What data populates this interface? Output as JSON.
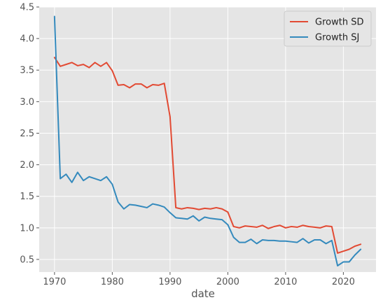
{
  "chart_data": {
    "type": "line",
    "title": "",
    "xlabel": "date",
    "ylabel": "",
    "xlim": [
      1967.35,
      2025.65
    ],
    "ylim": [
      0.3,
      4.5
    ],
    "grid": true,
    "legend_position": "top-right",
    "xticks": [
      1970,
      1980,
      1990,
      2000,
      2010,
      2020
    ],
    "yticks": [
      0.5,
      1.0,
      1.5,
      2.0,
      2.5,
      3.0,
      3.5,
      4.0,
      4.5
    ],
    "x": [
      1970,
      1971,
      1972,
      1973,
      1974,
      1975,
      1976,
      1977,
      1978,
      1979,
      1980,
      1981,
      1982,
      1983,
      1984,
      1985,
      1986,
      1987,
      1988,
      1989,
      1990,
      1991,
      1992,
      1993,
      1994,
      1995,
      1996,
      1997,
      1998,
      1999,
      2000,
      2001,
      2002,
      2003,
      2004,
      2005,
      2006,
      2007,
      2008,
      2009,
      2010,
      2011,
      2012,
      2013,
      2014,
      2015,
      2016,
      2017,
      2018,
      2019,
      2020,
      2021,
      2022,
      2023
    ],
    "series": [
      {
        "name": "Growth SD",
        "color": "#E24A33",
        "values": [
          3.7,
          3.56,
          3.59,
          3.62,
          3.57,
          3.59,
          3.54,
          3.62,
          3.56,
          3.62,
          3.49,
          3.26,
          3.27,
          3.22,
          3.28,
          3.28,
          3.22,
          3.27,
          3.26,
          3.29,
          2.76,
          1.32,
          1.3,
          1.32,
          1.31,
          1.29,
          1.31,
          1.3,
          1.32,
          1.3,
          1.25,
          1.02,
          1.0,
          1.03,
          1.02,
          1.01,
          1.04,
          0.99,
          1.02,
          1.04,
          1.0,
          1.02,
          1.01,
          1.04,
          1.02,
          1.01,
          1.0,
          1.03,
          1.02,
          0.6,
          0.63,
          0.66,
          0.71,
          0.74
        ]
      },
      {
        "name": "Growth SJ",
        "color": "#348ABD",
        "values": [
          4.35,
          1.78,
          1.85,
          1.72,
          1.88,
          1.75,
          1.81,
          1.78,
          1.75,
          1.81,
          1.69,
          1.41,
          1.3,
          1.37,
          1.36,
          1.34,
          1.32,
          1.38,
          1.36,
          1.33,
          1.24,
          1.16,
          1.15,
          1.14,
          1.19,
          1.11,
          1.17,
          1.15,
          1.14,
          1.13,
          1.05,
          0.85,
          0.77,
          0.77,
          0.82,
          0.75,
          0.81,
          0.8,
          0.8,
          0.79,
          0.79,
          0.78,
          0.77,
          0.83,
          0.76,
          0.81,
          0.81,
          0.75,
          0.8,
          0.4,
          0.46,
          0.46,
          0.57,
          0.66
        ]
      }
    ]
  }
}
